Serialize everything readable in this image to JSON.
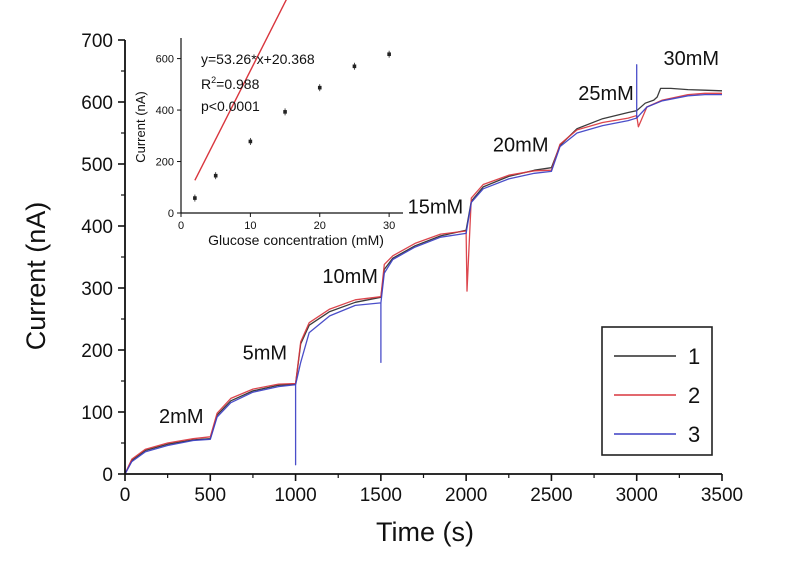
{
  "chart_data": [
    {
      "type": "line",
      "xlabel": "Time (s)",
      "ylabel": "Current (nA)",
      "xlim": [
        0,
        3500
      ],
      "ylim": [
        0,
        700
      ],
      "xticks": [
        0,
        500,
        1000,
        1500,
        2000,
        2500,
        3000,
        3500
      ],
      "yticks": [
        0,
        100,
        200,
        300,
        400,
        500,
        600,
        700
      ],
      "grid": false,
      "legend": {
        "placement": "bottom-right",
        "entries": [
          "1",
          "2",
          "3"
        ]
      },
      "colors": {
        "1": "#2b2b2b",
        "2": "#d9363e",
        "3": "#3b3fc4"
      },
      "annotations": [
        {
          "text": "2mM",
          "x": 330,
          "y": 82
        },
        {
          "text": "5mM",
          "x": 820,
          "y": 185
        },
        {
          "text": "10mM",
          "x": 1320,
          "y": 308
        },
        {
          "text": "15mM",
          "x": 1820,
          "y": 420
        },
        {
          "text": "20mM",
          "x": 2320,
          "y": 520
        },
        {
          "text": "25mM",
          "x": 2820,
          "y": 603
        },
        {
          "text": "30mM",
          "x": 3320,
          "y": 660
        }
      ],
      "series": [
        {
          "name": "1",
          "x": [
            0,
            40,
            120,
            250,
            400,
            499,
            500,
            540,
            620,
            750,
            900,
            999,
            1000,
            1030,
            1080,
            1200,
            1350,
            1499,
            1500,
            1520,
            1570,
            1700,
            1850,
            1999,
            2000,
            2030,
            2100,
            2250,
            2400,
            2499,
            2500,
            2550,
            2650,
            2800,
            2950,
            2999,
            3000,
            3050,
            3100,
            3120,
            3140,
            3200,
            3300,
            3400,
            3500
          ],
          "y": [
            0,
            22,
            38,
            48,
            55,
            57,
            57,
            95,
            118,
            134,
            143,
            145,
            145,
            210,
            240,
            262,
            277,
            285,
            285,
            330,
            348,
            368,
            384,
            393,
            393,
            440,
            463,
            480,
            490,
            494,
            494,
            530,
            557,
            573,
            583,
            586,
            586,
            598,
            603,
            608,
            622,
            622,
            620,
            619,
            618
          ]
        },
        {
          "name": "2",
          "x": [
            0,
            40,
            120,
            250,
            400,
            499,
            500,
            540,
            620,
            750,
            900,
            999,
            1000,
            1030,
            1080,
            1200,
            1350,
            1499,
            1500,
            1520,
            1570,
            1700,
            1850,
            1999,
            2000,
            2005,
            2030,
            2100,
            2250,
            2400,
            2499,
            2500,
            2550,
            2650,
            2800,
            2950,
            2999,
            3000,
            3010,
            3060,
            3150,
            3300,
            3400,
            3500
          ],
          "y": [
            0,
            24,
            40,
            50,
            57,
            60,
            60,
            98,
            122,
            137,
            145,
            146,
            146,
            213,
            244,
            266,
            281,
            286,
            286,
            338,
            352,
            372,
            387,
            392,
            392,
            295,
            445,
            467,
            482,
            489,
            490,
            490,
            532,
            555,
            567,
            574,
            578,
            578,
            560,
            592,
            603,
            612,
            614,
            614
          ]
        },
        {
          "name": "3",
          "x": [
            0,
            40,
            120,
            250,
            400,
            499,
            500,
            540,
            620,
            750,
            900,
            999,
            1000,
            1000,
            1000,
            1030,
            1080,
            1200,
            1350,
            1499,
            1500,
            1500,
            1500,
            1520,
            1570,
            1700,
            1850,
            1999,
            2000,
            2030,
            2100,
            2250,
            2400,
            2499,
            2500,
            2550,
            2650,
            2800,
            2950,
            2999,
            3000,
            3000,
            3000,
            3060,
            3150,
            3300,
            3400,
            3500
          ],
          "y": [
            0,
            20,
            36,
            46,
            54,
            56,
            56,
            92,
            115,
            132,
            141,
            144,
            144,
            15,
            144,
            180,
            228,
            255,
            272,
            276,
            276,
            180,
            276,
            324,
            346,
            366,
            382,
            388,
            388,
            438,
            460,
            476,
            485,
            488,
            488,
            528,
            550,
            562,
            570,
            574,
            574,
            660,
            574,
            592,
            602,
            610,
            612,
            612
          ]
        }
      ]
    },
    {
      "type": "scatter",
      "xlabel": "Glucose concentration (mM)",
      "ylabel": "Current (nA)",
      "xlim": [
        0,
        32
      ],
      "ylim": [
        0,
        680
      ],
      "xticks": [
        0,
        10,
        20,
        30
      ],
      "yticks": [
        0,
        200,
        400,
        600
      ],
      "grid": false,
      "annotations": [
        "y=53.26*x+20.368",
        "R",
        "2",
        "=0.988",
        "p<0.0001"
      ],
      "points": {
        "x": [
          2,
          5,
          10,
          15,
          20,
          25,
          30
        ],
        "y": [
          58,
          145,
          278,
          393,
          487,
          570,
          617
        ]
      },
      "fit": {
        "slope": 53.26,
        "intercept": 20.368,
        "color": "#d9363e",
        "x_range": [
          2,
          30
        ]
      }
    }
  ],
  "legend_box": {
    "entries": [
      "1",
      "2",
      "3"
    ]
  }
}
